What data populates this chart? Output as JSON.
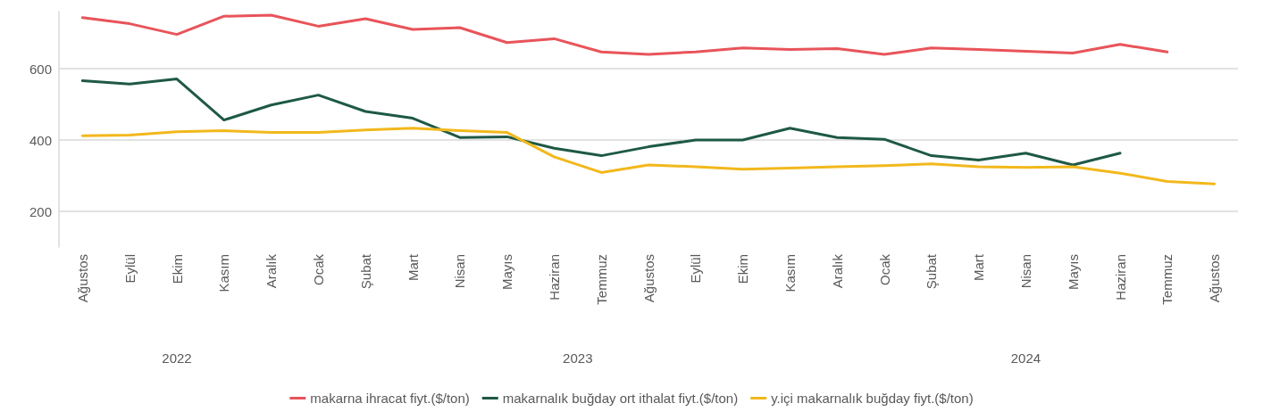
{
  "chart_data": {
    "type": "line",
    "categories": [
      "Ağustos",
      "Eylül",
      "Ekim",
      "Kasım",
      "Aralık",
      "Ocak",
      "Şubat",
      "Mart",
      "Nisan",
      "Mayıs",
      "Haziran",
      "Temmuz",
      "Ağustos",
      "Eylül",
      "Ekim",
      "Kasım",
      "Aralık",
      "Ocak",
      "Şubat",
      "Mart",
      "Nisan",
      "Mayıs",
      "Haziran",
      "Temmuz",
      "Ağustos"
    ],
    "annotations": [
      "2022",
      "2023",
      "2024"
    ],
    "series": [
      {
        "name": "makarna ihracat fiyt.($/ton)",
        "color": "#e8545a",
        "values": [
          743,
          726,
          696,
          747,
          750,
          719,
          740,
          710,
          715,
          673,
          684,
          647,
          640,
          647,
          658,
          654,
          656,
          640,
          658,
          654,
          649,
          644,
          668,
          647,
          null
        ]
      },
      {
        "name": "makarnalık buğday ort ithalat fiyt.($/ton)",
        "color": "#1e5945",
        "values": [
          566,
          557,
          571,
          456,
          498,
          526,
          480,
          461,
          407,
          409,
          377,
          356,
          381,
          400,
          400,
          433,
          407,
          402,
          356,
          344,
          363,
          330,
          363,
          null,
          null
        ]
      },
      {
        "name": "y.içi makarnalık buğday fiyt.($/ton)",
        "color": "#f2b81c",
        "values": [
          412,
          414,
          423,
          426,
          421,
          421,
          428,
          433,
          426,
          421,
          353,
          309,
          330,
          325,
          318,
          321,
          325,
          328,
          333,
          325,
          323,
          325,
          307,
          284,
          277
        ]
      }
    ],
    "ylim": [
      100,
      760
    ],
    "yticks": [
      200,
      400,
      600
    ],
    "grid": "y",
    "legend": "bottom",
    "marker": "none",
    "line_style": "solid"
  }
}
